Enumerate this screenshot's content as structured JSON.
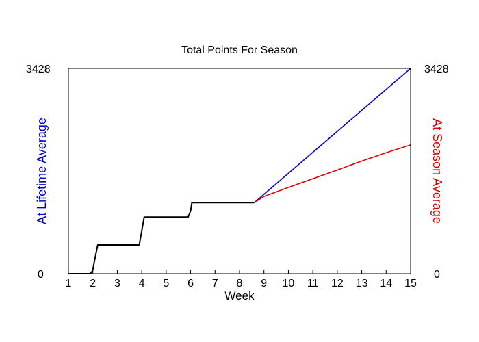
{
  "chart_data": {
    "type": "line",
    "title": "Total Points For Season",
    "xlabel": "Week",
    "ylabel_left": "At Lifetime Average",
    "ylabel_right": "At Season Average",
    "xlim": [
      1,
      15
    ],
    "ylim": [
      0,
      3428
    ],
    "x_ticks": [
      "1",
      "2",
      "3",
      "4",
      "5",
      "6",
      "7",
      "8",
      "9",
      "10",
      "11",
      "12",
      "13",
      "14",
      "15"
    ],
    "y_tick_left": {
      "min": "0",
      "max": "3428"
    },
    "y_tick_right": {
      "min": "0",
      "max": "3428"
    },
    "grid": false,
    "colors": {
      "actual": "#000000",
      "lifetime": "#0000cc",
      "season": "#dd0000"
    },
    "series": [
      {
        "role": "actual",
        "x": [
          1.0,
          1.9,
          2.0,
          2.05,
          2.2,
          3.9,
          4.1,
          5.9,
          6.0,
          6.05,
          8.6
        ],
        "values": [
          0,
          0,
          60,
          180,
          480,
          480,
          945,
          945,
          1050,
          1185,
          1185
        ]
      },
      {
        "name": "At Lifetime Average",
        "role": "lifetime",
        "x": [
          8.6,
          15.0
        ],
        "values": [
          1185,
          3428
        ]
      },
      {
        "name": "At Season Average",
        "role": "season",
        "x": [
          8.6,
          9.0,
          10.0,
          11.0,
          12.0,
          13.0,
          14.0,
          15.0
        ],
        "values": [
          1185,
          1290,
          1440,
          1585,
          1730,
          1880,
          2020,
          2150
        ]
      }
    ]
  }
}
